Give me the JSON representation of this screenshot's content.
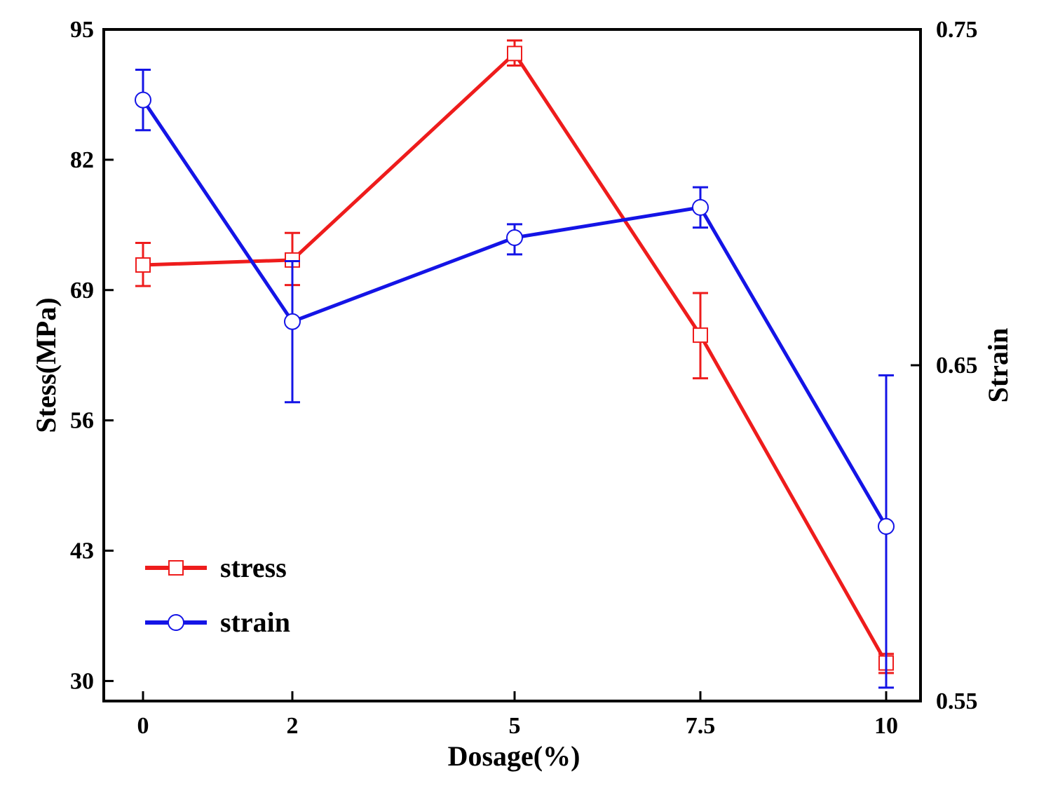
{
  "chart_data": {
    "type": "line",
    "categories": [
      "0",
      "2",
      "5",
      "7.5",
      "10"
    ],
    "xlabel": "Dosage(%)",
    "ylabel_left": "Stess(MPa)",
    "ylabel_right": "Strain",
    "y_left": {
      "ylim": [
        28,
        95
      ],
      "ticks": [
        "30",
        "43",
        "56",
        "69",
        "82",
        "95"
      ],
      "tick_values": [
        30,
        43,
        56,
        69,
        82,
        95
      ]
    },
    "y_right": {
      "ylim": [
        0.55,
        0.75
      ],
      "ticks": [
        "0.55",
        "0.65",
        "0.75"
      ],
      "tick_values": [
        0.55,
        0.65,
        0.75
      ]
    },
    "grid": false,
    "legend_position": "bottom-left",
    "series": [
      {
        "name": "stress",
        "axis": "left",
        "color": "#ee1c1c",
        "marker": "square",
        "values": [
          71.5,
          72.0,
          92.6,
          64.5,
          31.8
        ],
        "err_low": [
          69.4,
          69.5,
          91.4,
          60.2,
          30.8
        ],
        "err_high": [
          73.7,
          74.7,
          93.9,
          68.7,
          32.7
        ]
      },
      {
        "name": "strain",
        "axis": "right",
        "color": "#1414e6",
        "marker": "circle",
        "values": [
          0.729,
          0.663,
          0.688,
          0.697,
          0.602
        ],
        "err_low": [
          0.72,
          0.639,
          0.683,
          0.691,
          0.554
        ],
        "err_high": [
          0.738,
          0.681,
          0.692,
          0.703,
          0.647
        ]
      }
    ]
  }
}
